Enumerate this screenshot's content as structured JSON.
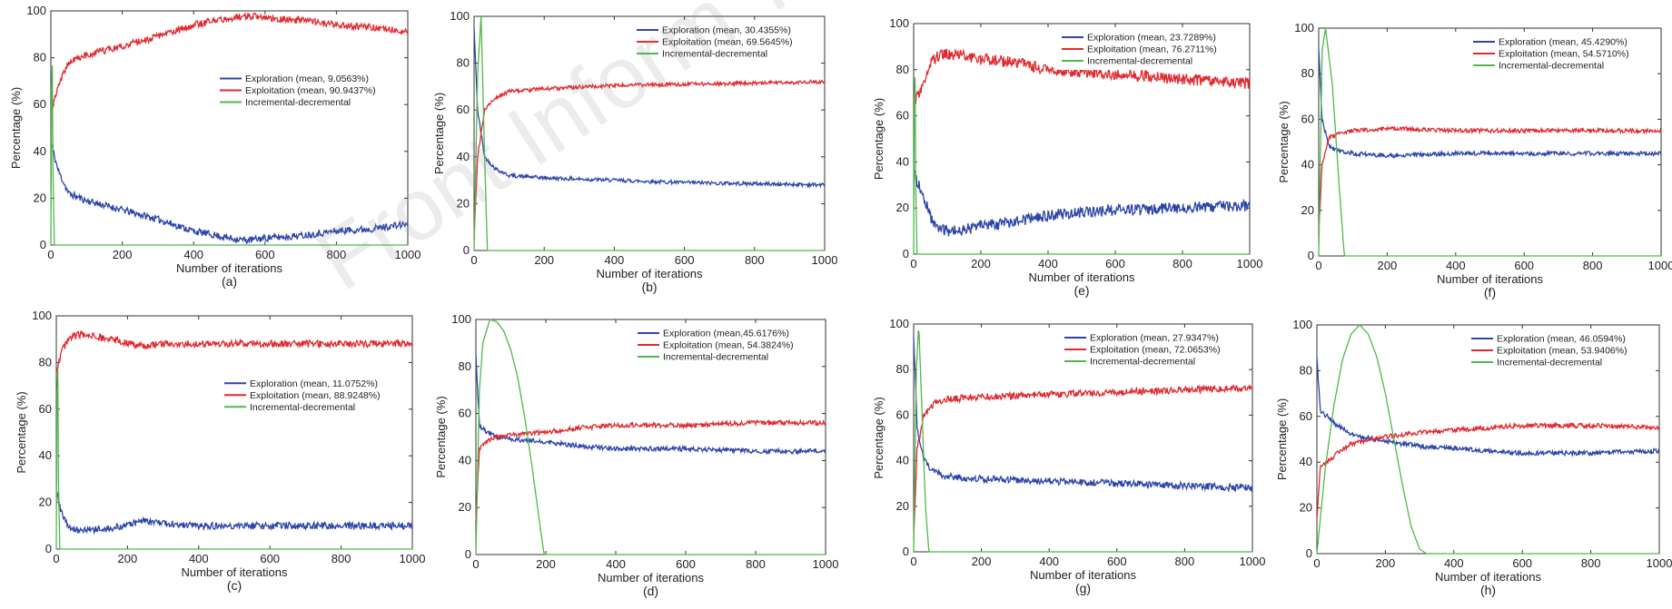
{
  "watermark": "Front Inform Technol Electron Eng",
  "colors": {
    "exploration": "#2d45a8",
    "exploitation": "#e02a30",
    "incremental": "#4fb84a"
  },
  "chart_data": [
    {
      "panel": "(a)",
      "type": "line",
      "xlabel": "Number of iterations",
      "ylabel": "Percentage (%)",
      "xlim": [
        0,
        1000
      ],
      "ylim": [
        0,
        100
      ],
      "xticks": [
        0,
        200,
        400,
        600,
        800,
        1000
      ],
      "yticks": [
        0,
        20,
        40,
        60,
        80,
        100
      ],
      "legend": "right",
      "series": [
        {
          "name": "Exploration (mean, 9.0563%)",
          "color": "#2d45a8",
          "noise": 1.5,
          "x": [
            0,
            20,
            50,
            100,
            200,
            300,
            400,
            500,
            550,
            600,
            700,
            800,
            900,
            1000
          ],
          "y": [
            44,
            32,
            22,
            19,
            15,
            11,
            6,
            3,
            2,
            3,
            4,
            6,
            7,
            9
          ]
        },
        {
          "name": "Exploitation (mean, 90.9437%)",
          "color": "#e02a30",
          "noise": 1.5,
          "x": [
            0,
            20,
            50,
            100,
            200,
            300,
            400,
            500,
            550,
            600,
            700,
            800,
            900,
            1000
          ],
          "y": [
            56,
            68,
            78,
            81,
            85,
            89,
            94,
            97,
            98,
            97,
            96,
            94,
            93,
            91
          ]
        },
        {
          "name": "Incremental-decremental",
          "color": "#4fb84a",
          "noise": 0,
          "x": [
            0,
            3,
            6,
            10,
            1000
          ],
          "y": [
            0,
            100,
            30,
            0,
            0
          ]
        }
      ]
    },
    {
      "panel": "(b)",
      "type": "line",
      "xlabel": "Number of iterations",
      "ylabel": "Percentage (%)",
      "xlim": [
        0,
        1000
      ],
      "ylim": [
        0,
        100
      ],
      "xticks": [
        0,
        200,
        400,
        600,
        800,
        1000
      ],
      "yticks": [
        0,
        20,
        40,
        60,
        80,
        100
      ],
      "legend": "top-right",
      "series": [
        {
          "name": "Exploration (mean, 30.4355%)",
          "color": "#2d45a8",
          "noise": 0.8,
          "x": [
            0,
            10,
            30,
            60,
            100,
            200,
            400,
            600,
            800,
            1000
          ],
          "y": [
            95,
            60,
            40,
            35,
            32,
            31,
            30,
            29,
            28.5,
            28
          ]
        },
        {
          "name": "Exploitation (mean, 69.5645%)",
          "color": "#e02a30",
          "noise": 0.8,
          "x": [
            0,
            10,
            30,
            60,
            100,
            200,
            400,
            600,
            800,
            1000
          ],
          "y": [
            5,
            40,
            60,
            65,
            68,
            69,
            70.5,
            71,
            71.5,
            72
          ]
        },
        {
          "name": "Incremental-decremental",
          "color": "#4fb84a",
          "noise": 0,
          "x": [
            0,
            10,
            20,
            30,
            38,
            1000
          ],
          "y": [
            0,
            75,
            100,
            40,
            0,
            0
          ]
        }
      ]
    },
    {
      "panel": "(e)",
      "type": "line",
      "xlabel": "Number of iterations",
      "ylabel": "Percentage (%)",
      "xlim": [
        0,
        1000
      ],
      "ylim": [
        0,
        100
      ],
      "xticks": [
        0,
        200,
        400,
        600,
        800,
        1000
      ],
      "yticks": [
        0,
        20,
        40,
        60,
        80,
        100
      ],
      "legend": "top-right",
      "series": [
        {
          "name": "Exploration (mean, 23.7289%)",
          "color": "#2d45a8",
          "noise": 2.5,
          "x": [
            0,
            30,
            60,
            100,
            200,
            300,
            400,
            500,
            600,
            800,
            1000
          ],
          "y": [
            35,
            25,
            12,
            10,
            12,
            14,
            17,
            18,
            19,
            20,
            21
          ]
        },
        {
          "name": "Exploitation (mean, 76.2711%)",
          "color": "#e02a30",
          "noise": 2.5,
          "x": [
            0,
            30,
            60,
            100,
            200,
            300,
            400,
            500,
            600,
            800,
            1000
          ],
          "y": [
            65,
            75,
            85,
            87,
            85,
            83,
            80,
            79,
            78,
            76,
            74
          ]
        },
        {
          "name": "Incremental-decremental",
          "color": "#4fb84a",
          "noise": 0,
          "x": [
            0,
            3,
            6,
            10,
            1000
          ],
          "y": [
            0,
            100,
            30,
            0,
            0
          ]
        }
      ]
    },
    {
      "panel": "(f)",
      "type": "line",
      "xlabel": "Number of iterations",
      "ylabel": "Percentage (%)",
      "xlim": [
        0,
        1000
      ],
      "ylim": [
        0,
        100
      ],
      "xticks": [
        0,
        200,
        400,
        600,
        800,
        1000
      ],
      "yticks": [
        0,
        20,
        40,
        60,
        80,
        100
      ],
      "legend": "top-right",
      "series": [
        {
          "name": "Exploration (mean, 45.4290%)",
          "color": "#2d45a8",
          "noise": 0.9,
          "x": [
            0,
            10,
            30,
            60,
            100,
            200,
            400,
            600,
            800,
            1000
          ],
          "y": [
            90,
            60,
            48,
            46,
            45,
            44,
            45,
            45,
            45,
            45
          ]
        },
        {
          "name": "Exploitation (mean, 54.5710%)",
          "color": "#e02a30",
          "noise": 0.9,
          "x": [
            0,
            10,
            30,
            60,
            100,
            200,
            400,
            600,
            800,
            1000
          ],
          "y": [
            10,
            40,
            52,
            54,
            55,
            56,
            55,
            55,
            55,
            55
          ]
        },
        {
          "name": "Incremental-decremental",
          "color": "#4fb84a",
          "noise": 0,
          "x": [
            0,
            10,
            20,
            40,
            60,
            75,
            1000
          ],
          "y": [
            0,
            90,
            100,
            75,
            30,
            0,
            0
          ]
        }
      ]
    },
    {
      "panel": "(c)",
      "type": "line",
      "xlabel": "Number of iterations",
      "ylabel": "Percentage (%)",
      "xlim": [
        0,
        1000
      ],
      "ylim": [
        0,
        100
      ],
      "xticks": [
        0,
        200,
        400,
        600,
        800,
        1000
      ],
      "yticks": [
        0,
        20,
        40,
        60,
        80,
        100
      ],
      "legend": "right",
      "series": [
        {
          "name": "Exploration (mean, 11.0752%)",
          "color": "#2d45a8",
          "noise": 1.5,
          "x": [
            0,
            15,
            40,
            70,
            150,
            250,
            300,
            400,
            600,
            800,
            1000
          ],
          "y": [
            25,
            15,
            9,
            8,
            9,
            12,
            11,
            10,
            10,
            10,
            10
          ]
        },
        {
          "name": "Exploitation (mean, 88.9248%)",
          "color": "#e02a30",
          "noise": 1.5,
          "x": [
            0,
            15,
            40,
            70,
            150,
            250,
            300,
            400,
            600,
            800,
            1000
          ],
          "y": [
            75,
            85,
            91,
            92,
            90,
            87,
            88,
            88,
            88,
            88,
            88
          ]
        },
        {
          "name": "Incremental-decremental",
          "color": "#4fb84a",
          "noise": 0,
          "x": [
            0,
            3,
            6,
            10,
            1000
          ],
          "y": [
            0,
            100,
            30,
            0,
            0
          ]
        }
      ]
    },
    {
      "panel": "(d)",
      "type": "line",
      "xlabel": "Number of iterations",
      "ylabel": "Percentage (%)",
      "xlim": [
        0,
        1000
      ],
      "ylim": [
        0,
        100
      ],
      "xticks": [
        0,
        200,
        400,
        600,
        800,
        1000
      ],
      "yticks": [
        0,
        20,
        40,
        60,
        80,
        100
      ],
      "legend": "top-right",
      "series": [
        {
          "name": "Exploration (mean,45.6176%)",
          "color": "#2d45a8",
          "noise": 1.0,
          "x": [
            0,
            10,
            30,
            60,
            100,
            200,
            300,
            400,
            600,
            800,
            1000
          ],
          "y": [
            85,
            55,
            52,
            50,
            49,
            48,
            46,
            45,
            45,
            44,
            44
          ]
        },
        {
          "name": "Exploitation (mean, 54.3824%)",
          "color": "#e02a30",
          "noise": 1.0,
          "x": [
            0,
            10,
            30,
            60,
            100,
            200,
            300,
            400,
            600,
            800,
            1000
          ],
          "y": [
            15,
            45,
            48,
            50,
            51,
            52,
            54,
            55,
            55,
            56,
            56
          ]
        },
        {
          "name": "Incremental-decremental",
          "color": "#4fb84a",
          "noise": 0,
          "x": [
            0,
            10,
            20,
            40,
            60,
            80,
            100,
            120,
            140,
            160,
            180,
            195,
            1000
          ],
          "y": [
            0,
            70,
            90,
            100,
            99,
            95,
            87,
            75,
            58,
            38,
            16,
            0,
            0
          ]
        }
      ]
    },
    {
      "panel": "(g)",
      "type": "line",
      "xlabel": "Number of iterations",
      "ylabel": "Percentage (%)",
      "xlim": [
        0,
        1000
      ],
      "ylim": [
        0,
        100
      ],
      "xticks": [
        0,
        200,
        400,
        600,
        800,
        1000
      ],
      "yticks": [
        0,
        20,
        40,
        60,
        80,
        100
      ],
      "legend": "top-right",
      "series": [
        {
          "name": "Exploration (mean, 27.9347%)",
          "color": "#2d45a8",
          "noise": 1.5,
          "x": [
            0,
            10,
            30,
            60,
            100,
            200,
            400,
            600,
            800,
            1000
          ],
          "y": [
            95,
            55,
            40,
            35,
            33,
            32,
            31,
            30,
            29,
            28
          ]
        },
        {
          "name": "Exploitation (mean, 72.0653%)",
          "color": "#e02a30",
          "noise": 1.5,
          "x": [
            0,
            10,
            30,
            60,
            100,
            200,
            400,
            600,
            800,
            1000
          ],
          "y": [
            5,
            45,
            60,
            65,
            67,
            68,
            69,
            70,
            71,
            72
          ]
        },
        {
          "name": "Incremental-decremental",
          "color": "#4fb84a",
          "noise": 0,
          "x": [
            0,
            8,
            15,
            25,
            35,
            45,
            1000
          ],
          "y": [
            0,
            80,
            100,
            60,
            20,
            0,
            0
          ]
        }
      ]
    },
    {
      "panel": "(h)",
      "type": "line",
      "xlabel": "Number of iterations",
      "ylabel": "Percentage (%)",
      "xlim": [
        0,
        1000
      ],
      "ylim": [
        0,
        100
      ],
      "xticks": [
        0,
        200,
        400,
        600,
        800,
        1000
      ],
      "yticks": [
        0,
        20,
        40,
        60,
        80,
        100
      ],
      "legend": "top-right",
      "series": [
        {
          "name": "Exploration (mean, 46.0594%)",
          "color": "#2d45a8",
          "noise": 1.0,
          "x": [
            0,
            10,
            30,
            60,
            100,
            200,
            300,
            400,
            600,
            800,
            1000
          ],
          "y": [
            85,
            62,
            60,
            56,
            52,
            49,
            47,
            46,
            44,
            44,
            45
          ]
        },
        {
          "name": "Exploitation (mean, 53.9406%)",
          "color": "#e02a30",
          "noise": 1.0,
          "x": [
            0,
            10,
            30,
            60,
            100,
            200,
            300,
            400,
            600,
            800,
            1000
          ],
          "y": [
            15,
            38,
            40,
            44,
            48,
            51,
            53,
            54,
            56,
            56,
            55
          ]
        },
        {
          "name": "Incremental-decremental",
          "color": "#4fb84a",
          "noise": 0,
          "x": [
            0,
            25,
            50,
            75,
            100,
            125,
            150,
            175,
            200,
            225,
            250,
            275,
            300,
            320,
            1000
          ],
          "y": [
            0,
            38,
            65,
            85,
            96,
            100,
            96,
            86,
            70,
            50,
            30,
            12,
            2,
            0,
            0
          ]
        }
      ]
    }
  ]
}
